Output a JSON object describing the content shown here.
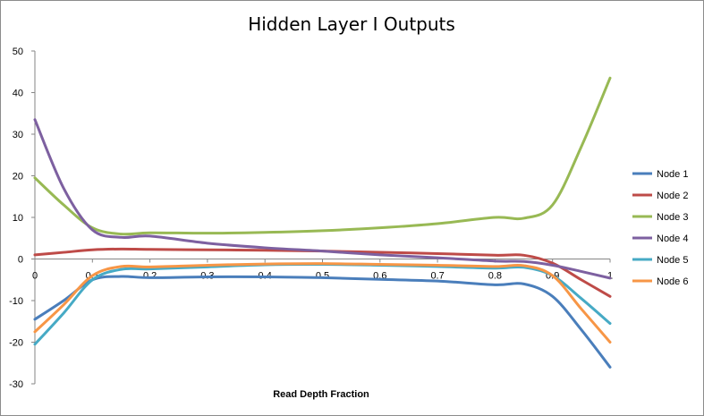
{
  "chart_data": {
    "type": "line",
    "title": "Hidden Layer I Outputs",
    "xlabel": "Read Depth Fraction",
    "ylabel": "",
    "xlim": [
      0,
      1
    ],
    "ylim": [
      -30,
      50
    ],
    "x_ticks": [
      0,
      0.1,
      0.2,
      0.3,
      0.4,
      0.5,
      0.6,
      0.7,
      0.8,
      0.9,
      1
    ],
    "x_tick_labels": [
      "0",
      "0.1",
      "0.2",
      "0.3",
      "0.4",
      "0.5",
      "0.6",
      "0.7",
      "0.8",
      "0.9",
      "1"
    ],
    "y_ticks": [
      -30,
      -20,
      -10,
      0,
      10,
      20,
      30,
      40,
      50
    ],
    "y_tick_labels": [
      "-30",
      "-20",
      "-10",
      "0",
      "10",
      "20",
      "30",
      "40",
      "50"
    ],
    "grid": false,
    "legend_position": "right",
    "x": [
      0,
      0.05,
      0.1,
      0.15,
      0.2,
      0.3,
      0.4,
      0.5,
      0.6,
      0.7,
      0.8,
      0.85,
      0.9,
      0.95,
      1
    ],
    "series": [
      {
        "name": "Node 1",
        "color": "#4a7ebb",
        "values": [
          -14.5,
          -10,
          -5,
          -4.2,
          -4.5,
          -4.3,
          -4.3,
          -4.5,
          -4.9,
          -5.3,
          -6.2,
          -6,
          -9,
          -17,
          -26
        ]
      },
      {
        "name": "Node 2",
        "color": "#be4b48",
        "values": [
          1,
          1.6,
          2.2,
          2.4,
          2.3,
          2.2,
          2.1,
          1.9,
          1.6,
          1.3,
          0.9,
          0.9,
          -1,
          -5,
          -9
        ]
      },
      {
        "name": "Node 3",
        "color": "#98b954",
        "values": [
          19.5,
          13,
          7.5,
          6,
          6.3,
          6.2,
          6.4,
          6.8,
          7.5,
          8.5,
          10,
          9.8,
          13,
          27,
          43.5
        ]
      },
      {
        "name": "Node 4",
        "color": "#7d60a0",
        "values": [
          33.5,
          17,
          7,
          5.2,
          5.5,
          3.8,
          2.7,
          1.9,
          1,
          0.3,
          -0.5,
          -0.6,
          -1.5,
          -3,
          -4.6
        ]
      },
      {
        "name": "Node 5",
        "color": "#46aac5",
        "values": [
          -20.5,
          -13,
          -5,
          -2.5,
          -2.4,
          -1.9,
          -1.4,
          -1.3,
          -1.5,
          -1.8,
          -2.2,
          -2.0,
          -4,
          -9.5,
          -15.5
        ]
      },
      {
        "name": "Node 6",
        "color": "#f79646",
        "values": [
          -17.5,
          -11,
          -4,
          -1.8,
          -1.9,
          -1.5,
          -1.2,
          -1.1,
          -1.3,
          -1.5,
          -1.8,
          -1.6,
          -4,
          -12,
          -20
        ]
      }
    ]
  }
}
